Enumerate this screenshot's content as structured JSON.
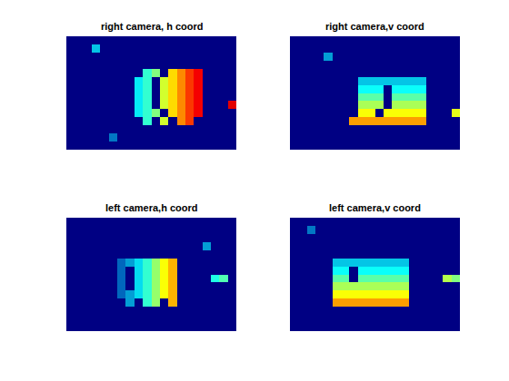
{
  "chart_data": [
    {
      "type": "heatmap",
      "title": "right camera, h coord",
      "zlim": [
        0,
        100
      ],
      "color": "Jet",
      "tick_labels": false,
      "z": [
        [
          0,
          0,
          0,
          0,
          0,
          0,
          0,
          0,
          0,
          0,
          0,
          0,
          0,
          0,
          0,
          0,
          0,
          0,
          0,
          0
        ],
        [
          0,
          0,
          0,
          30,
          0,
          0,
          0,
          0,
          0,
          0,
          0,
          0,
          0,
          0,
          0,
          0,
          0,
          0,
          0,
          0
        ],
        [
          0,
          0,
          0,
          0,
          0,
          0,
          0,
          0,
          0,
          0,
          0,
          0,
          0,
          0,
          0,
          0,
          0,
          0,
          0,
          0
        ],
        [
          0,
          0,
          0,
          0,
          0,
          0,
          0,
          0,
          0,
          0,
          0,
          0,
          0,
          0,
          0,
          0,
          0,
          0,
          0,
          0
        ],
        [
          0,
          0,
          0,
          0,
          0,
          0,
          0,
          0,
          0,
          42,
          50,
          0,
          66,
          74,
          82,
          88,
          0,
          0,
          0,
          0
        ],
        [
          0,
          0,
          0,
          0,
          0,
          0,
          0,
          0,
          35,
          42,
          0,
          58,
          66,
          74,
          82,
          88,
          0,
          0,
          0,
          0
        ],
        [
          0,
          0,
          0,
          0,
          0,
          0,
          0,
          0,
          35,
          42,
          0,
          58,
          66,
          74,
          82,
          88,
          0,
          0,
          0,
          0
        ],
        [
          0,
          0,
          0,
          0,
          0,
          0,
          0,
          0,
          35,
          42,
          0,
          58,
          66,
          74,
          82,
          88,
          0,
          0,
          0,
          0
        ],
        [
          0,
          0,
          0,
          0,
          0,
          0,
          0,
          0,
          35,
          42,
          0,
          58,
          66,
          74,
          82,
          88,
          0,
          0,
          0,
          90
        ],
        [
          0,
          0,
          0,
          0,
          0,
          0,
          0,
          0,
          35,
          42,
          50,
          0,
          66,
          74,
          82,
          88,
          0,
          0,
          0,
          0
        ],
        [
          0,
          0,
          0,
          0,
          0,
          0,
          0,
          0,
          0,
          42,
          0,
          58,
          0,
          74,
          82,
          0,
          0,
          0,
          0,
          0
        ],
        [
          0,
          0,
          0,
          0,
          0,
          0,
          0,
          0,
          0,
          0,
          0,
          0,
          0,
          0,
          0,
          0,
          0,
          0,
          0,
          0
        ],
        [
          0,
          0,
          0,
          0,
          0,
          20,
          0,
          0,
          0,
          0,
          0,
          0,
          0,
          0,
          0,
          0,
          0,
          0,
          0,
          0
        ],
        [
          0,
          0,
          0,
          0,
          0,
          0,
          0,
          0,
          0,
          0,
          0,
          0,
          0,
          0,
          0,
          0,
          0,
          0,
          0,
          0
        ]
      ]
    },
    {
      "type": "heatmap",
      "title": "right camera,v coord",
      "zlim": [
        0,
        100
      ],
      "color": "Jet",
      "tick_labels": false,
      "z": [
        [
          0,
          0,
          0,
          0,
          0,
          0,
          0,
          0,
          0,
          0,
          0,
          0,
          0,
          0,
          0,
          0,
          0,
          0,
          0,
          0
        ],
        [
          0,
          0,
          0,
          0,
          0,
          0,
          0,
          0,
          0,
          0,
          0,
          0,
          0,
          0,
          0,
          0,
          0,
          0,
          0,
          0
        ],
        [
          0,
          0,
          0,
          0,
          25,
          0,
          0,
          0,
          0,
          0,
          0,
          0,
          0,
          0,
          0,
          0,
          0,
          0,
          0,
          0
        ],
        [
          0,
          0,
          0,
          0,
          0,
          0,
          0,
          0,
          0,
          0,
          0,
          0,
          0,
          0,
          0,
          0,
          0,
          0,
          0,
          0
        ],
        [
          0,
          0,
          0,
          0,
          0,
          0,
          0,
          0,
          0,
          0,
          0,
          0,
          0,
          0,
          0,
          0,
          0,
          0,
          0,
          0
        ],
        [
          0,
          0,
          0,
          0,
          0,
          0,
          0,
          0,
          30,
          30,
          30,
          30,
          30,
          30,
          30,
          30,
          0,
          0,
          0,
          0
        ],
        [
          0,
          0,
          0,
          0,
          0,
          0,
          0,
          0,
          38,
          38,
          38,
          0,
          38,
          38,
          38,
          38,
          0,
          0,
          0,
          0
        ],
        [
          0,
          0,
          0,
          0,
          0,
          0,
          0,
          0,
          46,
          46,
          46,
          0,
          46,
          46,
          46,
          46,
          0,
          0,
          0,
          0
        ],
        [
          0,
          0,
          0,
          0,
          0,
          0,
          0,
          0,
          54,
          54,
          54,
          0,
          54,
          54,
          54,
          54,
          0,
          0,
          0,
          0
        ],
        [
          0,
          0,
          0,
          0,
          0,
          0,
          0,
          0,
          62,
          62,
          0,
          62,
          62,
          62,
          62,
          62,
          0,
          0,
          0,
          60
        ],
        [
          0,
          0,
          0,
          0,
          0,
          0,
          0,
          72,
          72,
          72,
          72,
          72,
          72,
          72,
          72,
          72,
          0,
          0,
          0,
          0
        ],
        [
          0,
          0,
          0,
          0,
          0,
          0,
          0,
          0,
          0,
          0,
          0,
          0,
          0,
          0,
          0,
          0,
          0,
          0,
          0,
          0
        ],
        [
          0,
          0,
          0,
          0,
          0,
          0,
          0,
          0,
          0,
          0,
          0,
          0,
          0,
          0,
          0,
          0,
          0,
          0,
          0,
          0
        ],
        [
          0,
          0,
          0,
          0,
          0,
          0,
          0,
          0,
          0,
          0,
          0,
          0,
          0,
          0,
          0,
          0,
          0,
          0,
          0,
          0
        ]
      ]
    },
    {
      "type": "heatmap",
      "title": "left camera,h coord",
      "zlim": [
        0,
        100
      ],
      "color": "Jet",
      "tick_labels": false,
      "z": [
        [
          0,
          0,
          0,
          0,
          0,
          0,
          0,
          0,
          0,
          0,
          0,
          0,
          0,
          0,
          0,
          0,
          0,
          0,
          0,
          0
        ],
        [
          0,
          0,
          0,
          0,
          0,
          0,
          0,
          0,
          0,
          0,
          0,
          0,
          0,
          0,
          0,
          0,
          0,
          0,
          0,
          0
        ],
        [
          0,
          0,
          0,
          0,
          0,
          0,
          0,
          0,
          0,
          0,
          0,
          0,
          0,
          0,
          0,
          0,
          0,
          0,
          0,
          0
        ],
        [
          0,
          0,
          0,
          0,
          0,
          0,
          0,
          0,
          0,
          0,
          0,
          0,
          0,
          0,
          0,
          0,
          25,
          0,
          0,
          0
        ],
        [
          0,
          0,
          0,
          0,
          0,
          0,
          0,
          0,
          0,
          0,
          0,
          0,
          0,
          0,
          0,
          0,
          0,
          0,
          0,
          0
        ],
        [
          0,
          0,
          0,
          0,
          0,
          0,
          18,
          25,
          33,
          42,
          52,
          62,
          70,
          0,
          0,
          0,
          0,
          0,
          0,
          0
        ],
        [
          0,
          0,
          0,
          0,
          0,
          0,
          18,
          0,
          33,
          42,
          52,
          62,
          70,
          0,
          0,
          0,
          0,
          0,
          0,
          0
        ],
        [
          0,
          0,
          0,
          0,
          0,
          0,
          18,
          0,
          33,
          42,
          52,
          62,
          70,
          0,
          0,
          0,
          0,
          40,
          45,
          0
        ],
        [
          0,
          0,
          0,
          0,
          0,
          0,
          18,
          0,
          33,
          42,
          52,
          62,
          70,
          0,
          0,
          0,
          0,
          0,
          0,
          0
        ],
        [
          0,
          0,
          0,
          0,
          0,
          0,
          18,
          25,
          33,
          42,
          52,
          62,
          70,
          0,
          0,
          0,
          0,
          0,
          0,
          0
        ],
        [
          0,
          0,
          0,
          0,
          0,
          0,
          0,
          25,
          0,
          42,
          52,
          0,
          70,
          0,
          0,
          0,
          0,
          0,
          0,
          0
        ],
        [
          0,
          0,
          0,
          0,
          0,
          0,
          0,
          0,
          0,
          0,
          0,
          0,
          0,
          0,
          0,
          0,
          0,
          0,
          0,
          0
        ],
        [
          0,
          0,
          0,
          0,
          0,
          0,
          0,
          0,
          0,
          0,
          0,
          0,
          0,
          0,
          0,
          0,
          0,
          0,
          0,
          0
        ],
        [
          0,
          0,
          0,
          0,
          0,
          0,
          0,
          0,
          0,
          0,
          0,
          0,
          0,
          0,
          0,
          0,
          0,
          0,
          0,
          0
        ]
      ]
    },
    {
      "type": "heatmap",
      "title": "left camera,v coord",
      "zlim": [
        0,
        100
      ],
      "color": "Jet",
      "tick_labels": false,
      "z": [
        [
          0,
          0,
          0,
          0,
          0,
          0,
          0,
          0,
          0,
          0,
          0,
          0,
          0,
          0,
          0,
          0,
          0,
          0,
          0,
          0
        ],
        [
          0,
          0,
          20,
          0,
          0,
          0,
          0,
          0,
          0,
          0,
          0,
          0,
          0,
          0,
          0,
          0,
          0,
          0,
          0,
          0
        ],
        [
          0,
          0,
          0,
          0,
          0,
          0,
          0,
          0,
          0,
          0,
          0,
          0,
          0,
          0,
          0,
          0,
          0,
          0,
          0,
          0
        ],
        [
          0,
          0,
          0,
          0,
          0,
          0,
          0,
          0,
          0,
          0,
          0,
          0,
          0,
          0,
          0,
          0,
          0,
          0,
          0,
          0
        ],
        [
          0,
          0,
          0,
          0,
          0,
          0,
          0,
          0,
          0,
          0,
          0,
          0,
          0,
          0,
          0,
          0,
          0,
          0,
          0,
          0
        ],
        [
          0,
          0,
          0,
          0,
          0,
          30,
          30,
          30,
          30,
          30,
          30,
          30,
          30,
          30,
          0,
          0,
          0,
          0,
          0,
          0
        ],
        [
          0,
          0,
          0,
          0,
          0,
          38,
          38,
          0,
          38,
          38,
          38,
          38,
          38,
          38,
          0,
          0,
          0,
          0,
          0,
          0
        ],
        [
          0,
          0,
          0,
          0,
          0,
          46,
          46,
          0,
          46,
          46,
          46,
          46,
          46,
          46,
          0,
          0,
          0,
          0,
          55,
          50
        ],
        [
          0,
          0,
          0,
          0,
          0,
          54,
          54,
          54,
          54,
          54,
          54,
          54,
          54,
          54,
          0,
          0,
          0,
          0,
          0,
          0
        ],
        [
          0,
          0,
          0,
          0,
          0,
          62,
          62,
          62,
          62,
          62,
          62,
          62,
          62,
          62,
          0,
          0,
          0,
          0,
          0,
          0
        ],
        [
          0,
          0,
          0,
          0,
          0,
          72,
          72,
          72,
          72,
          72,
          72,
          72,
          72,
          72,
          0,
          0,
          0,
          0,
          0,
          0
        ],
        [
          0,
          0,
          0,
          0,
          0,
          0,
          0,
          0,
          0,
          0,
          0,
          0,
          0,
          0,
          0,
          0,
          0,
          0,
          0,
          0
        ],
        [
          0,
          0,
          0,
          0,
          0,
          0,
          0,
          0,
          0,
          0,
          0,
          0,
          0,
          0,
          0,
          0,
          0,
          0,
          0,
          0
        ],
        [
          0,
          0,
          0,
          0,
          0,
          0,
          0,
          0,
          0,
          0,
          0,
          0,
          0,
          0,
          0,
          0,
          0,
          0,
          0,
          0
        ]
      ]
    }
  ]
}
